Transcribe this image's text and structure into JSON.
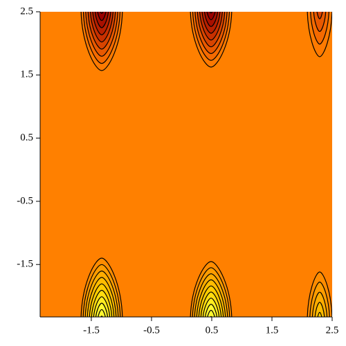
{
  "chart_data": {
    "type": "contour",
    "xlim": [
      -2.35,
      2.5
    ],
    "ylim": [
      -2.33,
      2.5
    ],
    "xticks": [
      -1.5,
      -0.5,
      0.5,
      1.5,
      2.5
    ],
    "yticks": [
      -1.5,
      -0.5,
      0.5,
      1.5,
      2.5
    ],
    "background": "#ff8000"
  }
}
